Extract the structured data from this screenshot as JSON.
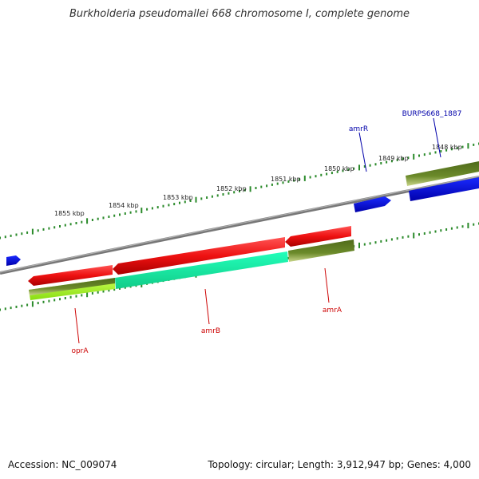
{
  "title": "Burkholderia pseudomallei 668 chromosome I, complete genome",
  "accession": "Accession: NC_009074",
  "summary": "Topology: circular; Length: 3,912,947 bp; Genes: 4,000",
  "colors": {
    "backbone": "#8a8a8a",
    "tick": "#2a8a2a",
    "red_gene": "#ee1111",
    "cyan_feature": "#22ffbb",
    "olive_feature": "#6b8a2a",
    "lime_feature": "#aaff22",
    "blue_gene": "#0a1aee",
    "red_label": "#cc0000",
    "blue_label": "#0000aa"
  },
  "ticks": [
    {
      "label": "1855 kbp"
    },
    {
      "label": "1854 kbp"
    },
    {
      "label": "1853 kbp"
    },
    {
      "label": "1852 kbp"
    },
    {
      "label": "1851 kbp"
    },
    {
      "label": "1850 kbp"
    },
    {
      "label": "1849 kbp"
    },
    {
      "label": "1848 kbp"
    }
  ],
  "gene_labels": [
    {
      "text": "oprA",
      "color": "red"
    },
    {
      "text": "amrB",
      "color": "red"
    },
    {
      "text": "amrA",
      "color": "red"
    },
    {
      "text": "amrR",
      "color": "blue"
    },
    {
      "text": "BURPS668_1887",
      "color": "blue"
    }
  ]
}
